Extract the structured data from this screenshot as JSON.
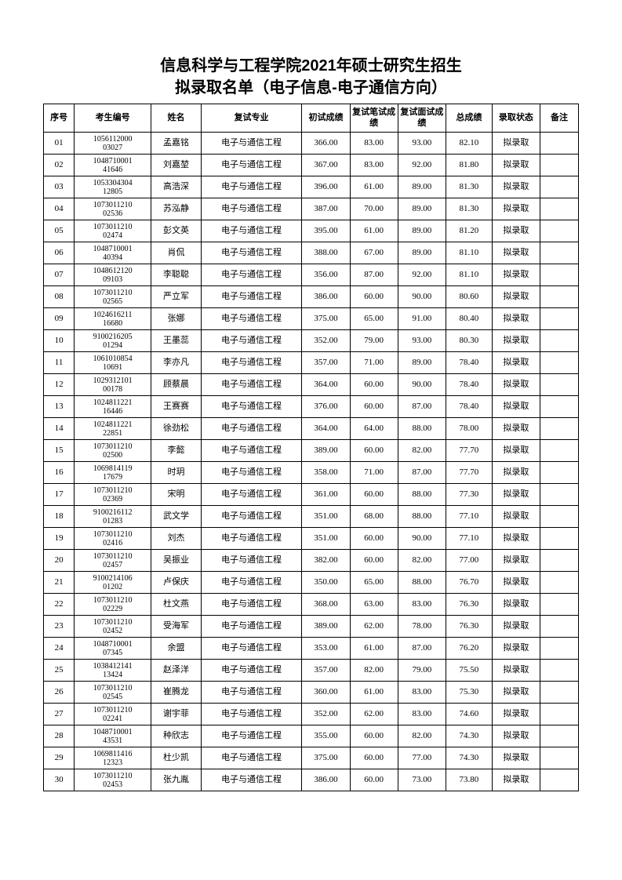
{
  "title_line1": "信息科学与工程学院2021年硕士研究生招生",
  "title_line2": "拟录取名单（电子信息-电子通信方向）",
  "headers": {
    "seq": "序号",
    "id": "考生编号",
    "name": "姓名",
    "major": "复试专业",
    "score1": "初试成绩",
    "score2": "复试笔试成绩",
    "score3": "复试面试成绩",
    "total": "总成绩",
    "status": "录取状态",
    "remark": "备注"
  },
  "major_text": "电子与通信工程",
  "status_text": "拟录取",
  "rows": [
    {
      "seq": "01",
      "id1": "1056112000",
      "id2": "03027",
      "name": "孟嘉铭",
      "s1": "366.00",
      "s2": "83.00",
      "s3": "93.00",
      "total": "82.10"
    },
    {
      "seq": "02",
      "id1": "1048710001",
      "id2": "41646",
      "name": "刘嘉堃",
      "s1": "367.00",
      "s2": "83.00",
      "s3": "92.00",
      "total": "81.80"
    },
    {
      "seq": "03",
      "id1": "1053304304",
      "id2": "12805",
      "name": "高浩深",
      "s1": "396.00",
      "s2": "61.00",
      "s3": "89.00",
      "total": "81.30"
    },
    {
      "seq": "04",
      "id1": "1073011210",
      "id2": "02536",
      "name": "苏泓静",
      "s1": "387.00",
      "s2": "70.00",
      "s3": "89.00",
      "total": "81.30"
    },
    {
      "seq": "05",
      "id1": "1073011210",
      "id2": "02474",
      "name": "彭文英",
      "s1": "395.00",
      "s2": "61.00",
      "s3": "89.00",
      "total": "81.20"
    },
    {
      "seq": "06",
      "id1": "1048710001",
      "id2": "40394",
      "name": "肖侃",
      "s1": "388.00",
      "s2": "67.00",
      "s3": "89.00",
      "total": "81.10"
    },
    {
      "seq": "07",
      "id1": "1048612120",
      "id2": "09103",
      "name": "李聪聪",
      "s1": "356.00",
      "s2": "87.00",
      "s3": "92.00",
      "total": "81.10"
    },
    {
      "seq": "08",
      "id1": "1073011210",
      "id2": "02565",
      "name": "严立军",
      "s1": "386.00",
      "s2": "60.00",
      "s3": "90.00",
      "total": "80.60"
    },
    {
      "seq": "09",
      "id1": "1024616211",
      "id2": "16680",
      "name": "张娜",
      "s1": "375.00",
      "s2": "65.00",
      "s3": "91.00",
      "total": "80.40"
    },
    {
      "seq": "10",
      "id1": "9100216205",
      "id2": "01294",
      "name": "王墨蕊",
      "s1": "352.00",
      "s2": "79.00",
      "s3": "93.00",
      "total": "80.30"
    },
    {
      "seq": "11",
      "id1": "1061010854",
      "id2": "10691",
      "name": "李亦凡",
      "s1": "357.00",
      "s2": "71.00",
      "s3": "89.00",
      "total": "78.40"
    },
    {
      "seq": "12",
      "id1": "1029312101",
      "id2": "00178",
      "name": "顾蔡晨",
      "s1": "364.00",
      "s2": "60.00",
      "s3": "90.00",
      "total": "78.40"
    },
    {
      "seq": "13",
      "id1": "1024811221",
      "id2": "16446",
      "name": "王赛赛",
      "s1": "376.00",
      "s2": "60.00",
      "s3": "87.00",
      "total": "78.40"
    },
    {
      "seq": "14",
      "id1": "1024811221",
      "id2": "22851",
      "name": "徐劲松",
      "s1": "364.00",
      "s2": "64.00",
      "s3": "88.00",
      "total": "78.00"
    },
    {
      "seq": "15",
      "id1": "1073011210",
      "id2": "02500",
      "name": "李懿",
      "s1": "389.00",
      "s2": "60.00",
      "s3": "82.00",
      "total": "77.70"
    },
    {
      "seq": "16",
      "id1": "1069814119",
      "id2": "17679",
      "name": "时玥",
      "s1": "358.00",
      "s2": "71.00",
      "s3": "87.00",
      "total": "77.70"
    },
    {
      "seq": "17",
      "id1": "1073011210",
      "id2": "02369",
      "name": "宋明",
      "s1": "361.00",
      "s2": "60.00",
      "s3": "88.00",
      "total": "77.30"
    },
    {
      "seq": "18",
      "id1": "9100216112",
      "id2": "01283",
      "name": "武文学",
      "s1": "351.00",
      "s2": "68.00",
      "s3": "88.00",
      "total": "77.10"
    },
    {
      "seq": "19",
      "id1": "1073011210",
      "id2": "02416",
      "name": "刘杰",
      "s1": "351.00",
      "s2": "60.00",
      "s3": "90.00",
      "total": "77.10"
    },
    {
      "seq": "20",
      "id1": "1073011210",
      "id2": "02457",
      "name": "吴振业",
      "s1": "382.00",
      "s2": "60.00",
      "s3": "82.00",
      "total": "77.00"
    },
    {
      "seq": "21",
      "id1": "9100214106",
      "id2": "01202",
      "name": "卢保庆",
      "s1": "350.00",
      "s2": "65.00",
      "s3": "88.00",
      "total": "76.70"
    },
    {
      "seq": "22",
      "id1": "1073011210",
      "id2": "02229",
      "name": "杜文燕",
      "s1": "368.00",
      "s2": "63.00",
      "s3": "83.00",
      "total": "76.30"
    },
    {
      "seq": "23",
      "id1": "1073011210",
      "id2": "02452",
      "name": "受海军",
      "s1": "389.00",
      "s2": "62.00",
      "s3": "78.00",
      "total": "76.30"
    },
    {
      "seq": "24",
      "id1": "1048710001",
      "id2": "07345",
      "name": "余盟",
      "s1": "353.00",
      "s2": "61.00",
      "s3": "87.00",
      "total": "76.20"
    },
    {
      "seq": "25",
      "id1": "1038412141",
      "id2": "13424",
      "name": "赵泽洋",
      "s1": "357.00",
      "s2": "82.00",
      "s3": "79.00",
      "total": "75.50"
    },
    {
      "seq": "26",
      "id1": "1073011210",
      "id2": "02545",
      "name": "崔腾龙",
      "s1": "360.00",
      "s2": "61.00",
      "s3": "83.00",
      "total": "75.30"
    },
    {
      "seq": "27",
      "id1": "1073011210",
      "id2": "02241",
      "name": "谢宇菲",
      "s1": "352.00",
      "s2": "62.00",
      "s3": "83.00",
      "total": "74.60"
    },
    {
      "seq": "28",
      "id1": "1048710001",
      "id2": "43531",
      "name": "种欣志",
      "s1": "355.00",
      "s2": "60.00",
      "s3": "82.00",
      "total": "74.30"
    },
    {
      "seq": "29",
      "id1": "1069811416",
      "id2": "12323",
      "name": "杜少凯",
      "s1": "375.00",
      "s2": "60.00",
      "s3": "77.00",
      "total": "74.30"
    },
    {
      "seq": "30",
      "id1": "1073011210",
      "id2": "02453",
      "name": "张九胤",
      "s1": "386.00",
      "s2": "60.00",
      "s3": "73.00",
      "total": "73.80"
    }
  ]
}
